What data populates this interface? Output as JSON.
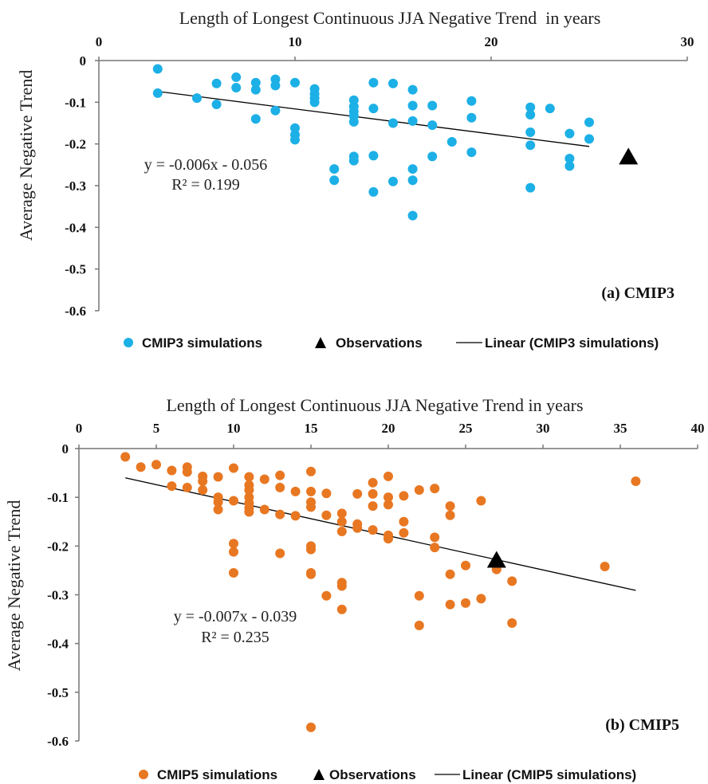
{
  "chart_data": [
    {
      "type": "scatter",
      "title": "",
      "xlabel": "Length of Longest Continuous JJA Negative Trend  in years",
      "ylabel": "Average Negative Trend",
      "xlim": [
        0,
        30
      ],
      "ylim": [
        -0.6,
        0
      ],
      "x_ticks": [
        "0",
        "10",
        "20",
        "30"
      ],
      "y_ticks": [
        "0",
        "-0.1",
        "-0.2",
        "-0.3",
        "-0.4",
        "-0.5",
        "-0.6"
      ],
      "x_axis_position": "top",
      "grid": false,
      "panel_label": "(a) CMIP3",
      "equation": "y = -0.006x - 0.056",
      "r_squared": "R² = 0.199",
      "legend": {
        "position": "bottom",
        "simulations": "CMIP3 simulations",
        "observations": "Observations",
        "trendline": "Linear (CMIP3 simulations)"
      },
      "colors": {
        "simulations": "#1cb0e6",
        "observations": "#000000",
        "trendline": "#000000"
      },
      "series": [
        {
          "name": "CMIP3 simulations",
          "points": [
            [
              3,
              -0.02
            ],
            [
              3,
              -0.078
            ],
            [
              5,
              -0.09
            ],
            [
              6,
              -0.055
            ],
            [
              6,
              -0.105
            ],
            [
              7,
              -0.04
            ],
            [
              7,
              -0.065
            ],
            [
              8,
              -0.053
            ],
            [
              8,
              -0.07
            ],
            [
              8,
              -0.14
            ],
            [
              9,
              -0.045
            ],
            [
              9,
              -0.06
            ],
            [
              9,
              -0.12
            ],
            [
              10,
              -0.053
            ],
            [
              10,
              -0.162
            ],
            [
              10,
              -0.178
            ],
            [
              10,
              -0.19
            ],
            [
              11,
              -0.068
            ],
            [
              11,
              -0.08
            ],
            [
              11,
              -0.09
            ],
            [
              11,
              -0.1
            ],
            [
              12,
              -0.26
            ],
            [
              12,
              -0.287
            ],
            [
              13,
              -0.095
            ],
            [
              13,
              -0.11
            ],
            [
              13,
              -0.122
            ],
            [
              13,
              -0.133
            ],
            [
              13,
              -0.147
            ],
            [
              13,
              -0.23
            ],
            [
              13,
              -0.24
            ],
            [
              14,
              -0.053
            ],
            [
              14,
              -0.115
            ],
            [
              14,
              -0.228
            ],
            [
              14,
              -0.315
            ],
            [
              15,
              -0.055
            ],
            [
              15,
              -0.15
            ],
            [
              15,
              -0.29
            ],
            [
              16,
              -0.07
            ],
            [
              16,
              -0.108
            ],
            [
              16,
              -0.145
            ],
            [
              16,
              -0.26
            ],
            [
              16,
              -0.287
            ],
            [
              16,
              -0.372
            ],
            [
              17,
              -0.108
            ],
            [
              17,
              -0.155
            ],
            [
              17,
              -0.23
            ],
            [
              18,
              -0.195
            ],
            [
              19,
              -0.097
            ],
            [
              19,
              -0.137
            ],
            [
              19,
              -0.22
            ],
            [
              22,
              -0.112
            ],
            [
              22,
              -0.13
            ],
            [
              22,
              -0.172
            ],
            [
              22,
              -0.203
            ],
            [
              22,
              -0.305
            ],
            [
              23,
              -0.115
            ],
            [
              24,
              -0.175
            ],
            [
              24,
              -0.235
            ],
            [
              24,
              -0.253
            ],
            [
              25,
              -0.148
            ],
            [
              25,
              -0.188
            ]
          ]
        },
        {
          "name": "Observations",
          "points": [
            [
              27,
              -0.23
            ]
          ]
        }
      ],
      "trendline": {
        "slope": -0.006,
        "intercept": -0.056,
        "x_range": [
          3,
          25
        ]
      }
    },
    {
      "type": "scatter",
      "title": "",
      "xlabel": "Length of Longest Continuous JJA Negative Trend in years",
      "ylabel": "Average Negative Trend",
      "xlim": [
        0,
        40
      ],
      "ylim": [
        -0.6,
        0
      ],
      "x_ticks": [
        "0",
        "5",
        "10",
        "15",
        "20",
        "25",
        "30",
        "35",
        "40"
      ],
      "y_ticks": [
        "0",
        "-0.1",
        "-0.2",
        "-0.3",
        "-0.4",
        "-0.5",
        "-0.6"
      ],
      "x_axis_position": "top",
      "grid": false,
      "panel_label": "(b) CMIP5",
      "equation": "y = -0.007x - 0.039",
      "r_squared": "R² = 0.235",
      "legend": {
        "position": "bottom",
        "simulations": "CMIP5 simulations",
        "observations": "Observations",
        "trendline": "Linear (CMIP5 simulations)"
      },
      "colors": {
        "simulations": "#e87722",
        "observations": "#000000",
        "trendline": "#000000"
      },
      "series": [
        {
          "name": "CMIP5 simulations",
          "points": [
            [
              3,
              -0.017
            ],
            [
              4,
              -0.038
            ],
            [
              5,
              -0.033
            ],
            [
              6,
              -0.045
            ],
            [
              6,
              -0.077
            ],
            [
              7,
              -0.038
            ],
            [
              7,
              -0.048
            ],
            [
              7,
              -0.08
            ],
            [
              8,
              -0.057
            ],
            [
              8,
              -0.067
            ],
            [
              8,
              -0.085
            ],
            [
              9,
              -0.058
            ],
            [
              9,
              -0.1
            ],
            [
              9,
              -0.11
            ],
            [
              9,
              -0.125
            ],
            [
              10,
              -0.04
            ],
            [
              10,
              -0.107
            ],
            [
              10,
              -0.195
            ],
            [
              10,
              -0.212
            ],
            [
              10,
              -0.255
            ],
            [
              11,
              -0.058
            ],
            [
              11,
              -0.075
            ],
            [
              11,
              -0.085
            ],
            [
              11,
              -0.1
            ],
            [
              11,
              -0.112
            ],
            [
              11,
              -0.122
            ],
            [
              11,
              -0.13
            ],
            [
              12,
              -0.063
            ],
            [
              12,
              -0.125
            ],
            [
              13,
              -0.055
            ],
            [
              13,
              -0.08
            ],
            [
              13,
              -0.135
            ],
            [
              13,
              -0.215
            ],
            [
              14,
              -0.088
            ],
            [
              14,
              -0.138
            ],
            [
              15,
              -0.047
            ],
            [
              15,
              -0.088
            ],
            [
              15,
              -0.11
            ],
            [
              15,
              -0.12
            ],
            [
              15,
              -0.2
            ],
            [
              15,
              -0.207
            ],
            [
              15,
              -0.255
            ],
            [
              15,
              -0.258
            ],
            [
              16,
              -0.092
            ],
            [
              16,
              -0.137
            ],
            [
              16,
              -0.302
            ],
            [
              17,
              -0.133
            ],
            [
              17,
              -0.15
            ],
            [
              17,
              -0.17
            ],
            [
              17,
              -0.275
            ],
            [
              17,
              -0.282
            ],
            [
              17,
              -0.33
            ],
            [
              18,
              -0.093
            ],
            [
              18,
              -0.155
            ],
            [
              18,
              -0.163
            ],
            [
              19,
              -0.07
            ],
            [
              19,
              -0.093
            ],
            [
              19,
              -0.118
            ],
            [
              19,
              -0.167
            ],
            [
              20,
              -0.057
            ],
            [
              20,
              -0.1
            ],
            [
              20,
              -0.115
            ],
            [
              20,
              -0.178
            ],
            [
              20,
              -0.185
            ],
            [
              21,
              -0.097
            ],
            [
              21,
              -0.15
            ],
            [
              21,
              -0.173
            ],
            [
              22,
              -0.085
            ],
            [
              22,
              -0.302
            ],
            [
              22,
              -0.363
            ],
            [
              23,
              -0.082
            ],
            [
              23,
              -0.182
            ],
            [
              23,
              -0.203
            ],
            [
              24,
              -0.118
            ],
            [
              24,
              -0.137
            ],
            [
              24,
              -0.258
            ],
            [
              24,
              -0.32
            ],
            [
              25,
              -0.24
            ],
            [
              25,
              -0.317
            ],
            [
              26,
              -0.107
            ],
            [
              26,
              -0.308
            ],
            [
              27,
              -0.248
            ],
            [
              28,
              -0.272
            ],
            [
              28,
              -0.358
            ],
            [
              15,
              -0.572
            ],
            [
              34,
              -0.242
            ],
            [
              36,
              -0.067
            ]
          ]
        },
        {
          "name": "Observations",
          "points": [
            [
              27,
              -0.228
            ]
          ]
        }
      ],
      "trendline": {
        "slope": -0.007,
        "intercept": -0.039,
        "x_range": [
          3,
          36
        ]
      }
    }
  ]
}
